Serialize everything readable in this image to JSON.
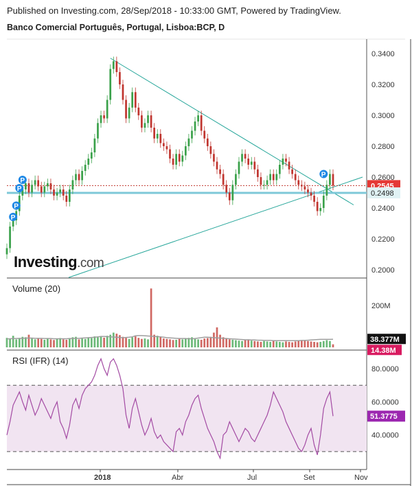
{
  "header": {
    "published": "Published on Investing.com, 28/Sep/2018 - 10:33:00 GMT, Powered by TradingView.",
    "title": "Banco Comercial Português, Portugal, Lisboa:BCP, D"
  },
  "logo": {
    "main": "Investing",
    "suffix": ".com"
  },
  "colors": {
    "up": "#3aa14a",
    "down": "#c0352f",
    "trend": "#26a69a",
    "support": "#7ec8d8",
    "rsi_line": "#a34aa3",
    "rsi_band": "#f1e4f1",
    "vol_ma": "#9e9e9e"
  },
  "chart_data": [
    {
      "type": "candlestick",
      "panel": "price",
      "y_ticks": [
        "0.3400",
        "0.3200",
        "0.3000",
        "0.2800",
        "0.2600",
        "0.2400",
        "0.2200",
        "0.2000"
      ],
      "ylim": [
        0.196,
        0.348
      ],
      "x_ticks": [
        "2018",
        "Abr",
        "Jul",
        "Set",
        "Nov"
      ],
      "last_price": "0.2545",
      "support_level": "0.2498",
      "markers": [
        "P",
        "P",
        "P",
        "P",
        "P"
      ],
      "closes": [
        0.214,
        0.228,
        0.232,
        0.238,
        0.248,
        0.252,
        0.256,
        0.25,
        0.255,
        0.258,
        0.254,
        0.25,
        0.254,
        0.256,
        0.252,
        0.248,
        0.25,
        0.252,
        0.248,
        0.244,
        0.252,
        0.258,
        0.262,
        0.258,
        0.264,
        0.268,
        0.272,
        0.276,
        0.285,
        0.295,
        0.3,
        0.298,
        0.31,
        0.33,
        0.335,
        0.328,
        0.32,
        0.31,
        0.298,
        0.305,
        0.315,
        0.305,
        0.3,
        0.292,
        0.295,
        0.3,
        0.292,
        0.285,
        0.288,
        0.282,
        0.28,
        0.278,
        0.272,
        0.268,
        0.275,
        0.27,
        0.274,
        0.28,
        0.285,
        0.29,
        0.296,
        0.3,
        0.29,
        0.285,
        0.28,
        0.275,
        0.27,
        0.265,
        0.262,
        0.255,
        0.25,
        0.245,
        0.255,
        0.262,
        0.27,
        0.275,
        0.272,
        0.268,
        0.27,
        0.265,
        0.26,
        0.255,
        0.255,
        0.258,
        0.262,
        0.258,
        0.262,
        0.268,
        0.272,
        0.27,
        0.265,
        0.262,
        0.258,
        0.255,
        0.254,
        0.252,
        0.25,
        0.248,
        0.244,
        0.238,
        0.24,
        0.248,
        0.255,
        0.262,
        0.2545
      ]
    },
    {
      "type": "bar",
      "panel": "volume",
      "title": "Volume (20)",
      "y_ticks": [
        "200M"
      ],
      "ylim": [
        0,
        320
      ],
      "volume_ma": "38.377M",
      "last_volume": "14.38M",
      "values": [
        45,
        40,
        55,
        38,
        42,
        50,
        48,
        60,
        42,
        38,
        44,
        40,
        36,
        42,
        38,
        35,
        40,
        44,
        38,
        36,
        42,
        48,
        50,
        38,
        42,
        40,
        46,
        44,
        52,
        48,
        50,
        46,
        55,
        60,
        70,
        65,
        58,
        50,
        45,
        40,
        48,
        52,
        45,
        40,
        42,
        38,
        280,
        60,
        55,
        50,
        42,
        40,
        38,
        35,
        36,
        40,
        38,
        42,
        45,
        48,
        40,
        38,
        36,
        42,
        44,
        50,
        70,
        95,
        60,
        48,
        42,
        38,
        36,
        34,
        32,
        30,
        35,
        38,
        32,
        30,
        28,
        26,
        30,
        28,
        26,
        30,
        28,
        26,
        24,
        28,
        26,
        24,
        28,
        30,
        32,
        34,
        30,
        28,
        26,
        24,
        26,
        30,
        34,
        30,
        14.38
      ],
      "ma": [
        40,
        41,
        42,
        42,
        43,
        43,
        44,
        44,
        44,
        43,
        43,
        43,
        42,
        42,
        42,
        41,
        41,
        41,
        41,
        41,
        42,
        42,
        43,
        43,
        44,
        45,
        46,
        47,
        48,
        50,
        52,
        52,
        51,
        50,
        49,
        48,
        47,
        46,
        47,
        48,
        50,
        55,
        56,
        56,
        55,
        54,
        53,
        52,
        51,
        50,
        48,
        46,
        45,
        44,
        43,
        42,
        42,
        42,
        41,
        41,
        42,
        44,
        46,
        48,
        48,
        47,
        46,
        45,
        44,
        43,
        42,
        41,
        40,
        39,
        38,
        37,
        36,
        36,
        35,
        35,
        34,
        34,
        33,
        33,
        33,
        32,
        32,
        32,
        32,
        32,
        32,
        32,
        32,
        32,
        33,
        33,
        34,
        35,
        36,
        37,
        38,
        38,
        38,
        38,
        38.377
      ]
    },
    {
      "type": "line",
      "panel": "rsi",
      "title": "RSI (IFR) (14)",
      "y_ticks": [
        "80.0000",
        "60.0000",
        "40.0000"
      ],
      "ylim": [
        20,
        90
      ],
      "bands": [
        30,
        70
      ],
      "last_value": "51.3775",
      "values": [
        40,
        48,
        58,
        62,
        66,
        60,
        55,
        64,
        58,
        52,
        56,
        62,
        58,
        54,
        50,
        56,
        60,
        48,
        44,
        38,
        46,
        58,
        62,
        56,
        64,
        68,
        70,
        72,
        76,
        82,
        86,
        80,
        76,
        84,
        86,
        82,
        76,
        68,
        52,
        44,
        56,
        62,
        54,
        46,
        40,
        44,
        50,
        42,
        38,
        40,
        36,
        34,
        32,
        30,
        42,
        44,
        40,
        48,
        52,
        58,
        62,
        64,
        56,
        50,
        44,
        40,
        36,
        30,
        26,
        40,
        42,
        48,
        44,
        40,
        36,
        40,
        44,
        42,
        38,
        36,
        40,
        44,
        48,
        52,
        58,
        66,
        62,
        58,
        54,
        48,
        44,
        40,
        36,
        32,
        30,
        34,
        40,
        44,
        34,
        28,
        40,
        56,
        62,
        66,
        51.3775
      ]
    }
  ]
}
